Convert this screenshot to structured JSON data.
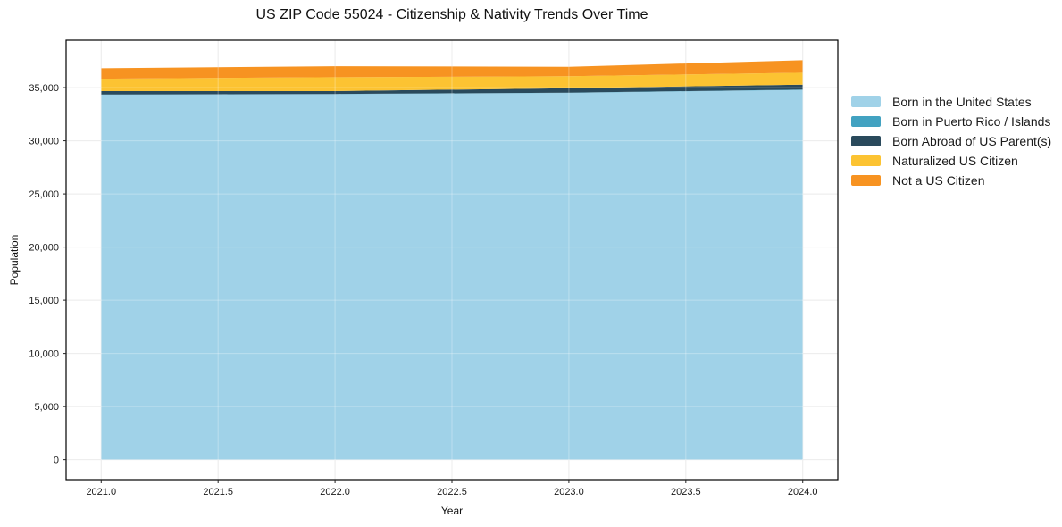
{
  "chart_data": {
    "type": "area",
    "stacked": true,
    "title": "US ZIP Code 55024 - Citizenship & Nativity Trends Over Time",
    "xlabel": "Year",
    "ylabel": "Population",
    "x": [
      2021,
      2022,
      2023,
      2024
    ],
    "series": [
      {
        "name": "Born in the United States",
        "color": "#a0d2e8",
        "values": [
          34330,
          34380,
          34500,
          34780
        ]
      },
      {
        "name": "Born in Puerto Rico / Islands",
        "color": "#42a2c1",
        "values": [
          20,
          20,
          25,
          30
        ]
      },
      {
        "name": "Born Abroad of US Parent(s)",
        "color": "#2a4a5c",
        "values": [
          320,
          270,
          425,
          470
        ]
      },
      {
        "name": "Naturalized US Citizen",
        "color": "#fcc332",
        "values": [
          1170,
          1310,
          1120,
          1120
        ]
      },
      {
        "name": "Not a US Citizen",
        "color": "#f79321",
        "values": [
          980,
          1030,
          890,
          1180
        ]
      }
    ],
    "totals": [
      36820,
      37010,
      36960,
      37580
    ],
    "xlim": [
      2020.85,
      2024.15
    ],
    "ylim": [
      -1879,
      39459
    ],
    "xticks": [
      2021.0,
      2021.5,
      2022.0,
      2022.5,
      2023.0,
      2023.5,
      2024.0
    ],
    "xtick_labels": [
      "2021.0",
      "2021.5",
      "2022.0",
      "2022.5",
      "2023.0",
      "2023.5",
      "2024.0"
    ],
    "yticks": [
      0,
      5000,
      10000,
      15000,
      20000,
      25000,
      30000,
      35000
    ],
    "ytick_labels": [
      "0",
      "5,000",
      "10,000",
      "15,000",
      "20,000",
      "25,000",
      "30,000",
      "35,000"
    ],
    "grid": true,
    "legend_position": "outside-right",
    "legend_frame": false
  },
  "colors": {
    "background": "#ffffff",
    "grid": "#e4e4e4",
    "grid_over_area": "rgba(255,255,255,0.3)",
    "axis_spine": "#000000",
    "tick_mark": "#222222",
    "text": "#111111"
  }
}
